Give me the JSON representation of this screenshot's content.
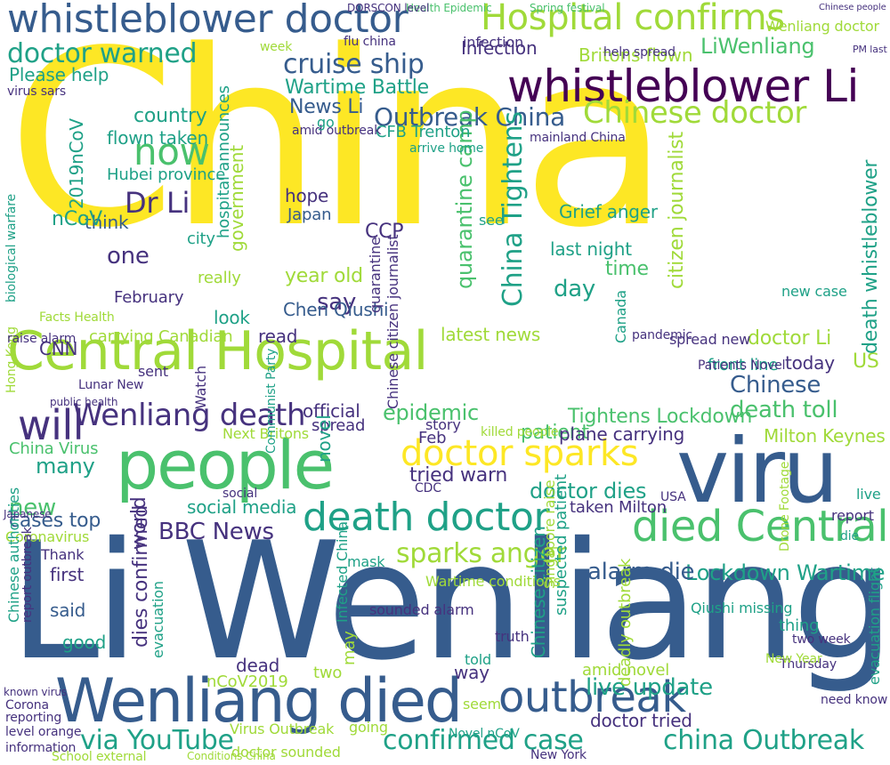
{
  "palette": {
    "yellow": "#fde725",
    "lime": "#a0da39",
    "green": "#4ac16d",
    "teal": "#1fa187",
    "cyan": "#277f8e",
    "blue": "#365c8d",
    "indigo": "#46327e",
    "purple": "#440154"
  },
  "words": [
    {
      "text": "China",
      "color": "yellow"
    },
    {
      "text": "Li Wenliang",
      "color": "blue"
    },
    {
      "text": "Central Hospital",
      "color": "lime"
    },
    {
      "text": "people",
      "color": "green"
    },
    {
      "text": "viru",
      "color": "blue"
    },
    {
      "text": "whistleblower doctor",
      "color": "blue"
    },
    {
      "text": "Hospital confirms",
      "color": "lime"
    },
    {
      "text": "whistleblower Li",
      "color": "purple"
    },
    {
      "text": "Wenliang died",
      "color": "blue"
    },
    {
      "text": "died Central",
      "color": "green"
    },
    {
      "text": "death doctor",
      "color": "teal"
    },
    {
      "text": "doctor sparks",
      "color": "yellow"
    },
    {
      "text": "Wenliang death",
      "color": "indigo"
    },
    {
      "text": "now",
      "color": "green"
    },
    {
      "text": "will",
      "color": "indigo"
    },
    {
      "text": "outbreak",
      "color": "blue"
    },
    {
      "text": "Chinese doctor",
      "color": "lime"
    },
    {
      "text": "cruise ship",
      "color": "blue"
    },
    {
      "text": "doctor warned",
      "color": "teal"
    },
    {
      "text": "Outbreak China",
      "color": "blue"
    },
    {
      "text": "Dr Li",
      "color": "indigo"
    },
    {
      "text": "BBC News",
      "color": "indigo"
    },
    {
      "text": "sparks anger",
      "color": "lime"
    },
    {
      "text": "confirmed case",
      "color": "teal"
    },
    {
      "text": "china Outbreak",
      "color": "teal"
    },
    {
      "text": "via YouTube",
      "color": "teal"
    },
    {
      "text": "live update",
      "color": "teal"
    },
    {
      "text": "Lockdown Wartime",
      "color": "teal"
    },
    {
      "text": "alarm die",
      "color": "blue"
    },
    {
      "text": "doctor dies",
      "color": "teal"
    },
    {
      "text": "Chinese",
      "color": "blue"
    },
    {
      "text": "death toll",
      "color": "green"
    },
    {
      "text": "epidemic",
      "color": "green"
    },
    {
      "text": "doctor Li",
      "color": "lime"
    },
    {
      "text": "Wartime Battle",
      "color": "teal"
    },
    {
      "text": "News Li",
      "color": "blue"
    },
    {
      "text": "country",
      "color": "teal"
    },
    {
      "text": "flown taken",
      "color": "teal"
    },
    {
      "text": "one",
      "color": "indigo"
    },
    {
      "text": "say",
      "color": "indigo"
    },
    {
      "text": "year old",
      "color": "lime"
    },
    {
      "text": "Chen Qiushi",
      "color": "blue"
    },
    {
      "text": "CCP",
      "color": "indigo"
    },
    {
      "text": "Grief anger",
      "color": "teal"
    },
    {
      "text": "day",
      "color": "teal"
    },
    {
      "text": "time",
      "color": "green"
    },
    {
      "text": "last night",
      "color": "teal"
    },
    {
      "text": "tried warn",
      "color": "indigo"
    },
    {
      "text": "Tightens Lockdown",
      "color": "green"
    },
    {
      "text": "patient",
      "color": "green"
    },
    {
      "text": "Milton Keynes",
      "color": "lime"
    },
    {
      "text": "plane carrying",
      "color": "indigo"
    },
    {
      "text": "cases top",
      "color": "blue"
    },
    {
      "text": "many",
      "color": "teal"
    },
    {
      "text": "new",
      "color": "green"
    },
    {
      "text": "China Virus",
      "color": "green"
    },
    {
      "text": "social media",
      "color": "teal"
    },
    {
      "text": "Infection",
      "color": "indigo"
    },
    {
      "text": "Please help",
      "color": "teal"
    },
    {
      "text": "Hubei province",
      "color": "teal"
    },
    {
      "text": "government",
      "color": "lime"
    },
    {
      "text": "Japan",
      "color": "blue"
    },
    {
      "text": "hope",
      "color": "indigo"
    },
    {
      "text": "think",
      "color": "blue"
    },
    {
      "text": "February",
      "color": "indigo"
    },
    {
      "text": "carrying Canadian",
      "color": "lime"
    },
    {
      "text": "latest news",
      "color": "lime"
    },
    {
      "text": "official",
      "color": "indigo"
    },
    {
      "text": "read",
      "color": "indigo"
    },
    {
      "text": "CNN",
      "color": "indigo"
    },
    {
      "text": "said",
      "color": "blue"
    },
    {
      "text": "first",
      "color": "indigo"
    },
    {
      "text": "good",
      "color": "teal"
    },
    {
      "text": "dead",
      "color": "indigo"
    },
    {
      "text": "today",
      "color": "indigo"
    },
    {
      "text": "US",
      "color": "lime"
    },
    {
      "text": "look",
      "color": "teal"
    },
    {
      "text": "really",
      "color": "lime"
    },
    {
      "text": "city",
      "color": "teal"
    },
    {
      "text": "new case",
      "color": "teal"
    },
    {
      "text": "Feb",
      "color": "indigo"
    },
    {
      "text": "story",
      "color": "indigo"
    },
    {
      "text": "spread",
      "color": "indigo"
    },
    {
      "text": "Chinese citizen",
      "color": "teal"
    },
    {
      "text": "China Tightens",
      "color": "teal"
    },
    {
      "text": "quarantine camp",
      "color": "green"
    },
    {
      "text": "citizen journalist",
      "color": "lime"
    },
    {
      "text": "death whistleblower",
      "color": "teal"
    },
    {
      "text": "2019nCoV",
      "color": "teal"
    },
    {
      "text": "nCoV",
      "color": "teal"
    },
    {
      "text": "hospital announces",
      "color": "teal"
    },
    {
      "text": "nCoV2019",
      "color": "lime"
    },
    {
      "text": "amid novel",
      "color": "lime"
    },
    {
      "text": "doctor tried",
      "color": "indigo"
    },
    {
      "text": "Coronavirus",
      "color": "lime"
    },
    {
      "text": "dies confirmed",
      "color": "indigo"
    },
    {
      "text": "world",
      "color": "indigo"
    },
    {
      "text": "novel",
      "color": "teal"
    },
    {
      "text": "front line",
      "color": "teal"
    },
    {
      "text": "Patients Novel",
      "color": "indigo"
    },
    {
      "text": "spread new",
      "color": "indigo"
    },
    {
      "text": "Watch",
      "color": "indigo"
    },
    {
      "text": "see",
      "color": "teal"
    },
    {
      "text": "CFB Trenton",
      "color": "teal"
    },
    {
      "text": "amid outbreak",
      "color": "indigo"
    },
    {
      "text": "arrive home",
      "color": "teal"
    },
    {
      "text": "quarantine",
      "color": "indigo"
    },
    {
      "text": "infection",
      "color": "indigo"
    },
    {
      "text": "LiWenliang",
      "color": "green"
    },
    {
      "text": "Britons flown",
      "color": "lime"
    },
    {
      "text": "Wenliang doctor",
      "color": "lime"
    },
    {
      "text": "Chinese people",
      "color": "indigo"
    },
    {
      "text": "Spring festival",
      "color": "green"
    },
    {
      "text": "Health Epidemic",
      "color": "green"
    },
    {
      "text": "DORSCON level",
      "color": "indigo"
    },
    {
      "text": "flu china",
      "color": "indigo"
    },
    {
      "text": "week",
      "color": "lime"
    },
    {
      "text": "help spread",
      "color": "indigo"
    },
    {
      "text": "PM last",
      "color": "indigo"
    },
    {
      "text": "go",
      "color": "teal"
    },
    {
      "text": "Canada",
      "color": "teal"
    },
    {
      "text": "Lunar New",
      "color": "indigo"
    },
    {
      "text": "sent",
      "color": "indigo"
    },
    {
      "text": "Thank",
      "color": "indigo"
    },
    {
      "text": "Hong Kong",
      "color": "lime"
    },
    {
      "text": "public health",
      "color": "indigo"
    },
    {
      "text": "Facts Health",
      "color": "lime"
    },
    {
      "text": "raise alarm",
      "color": "indigo"
    },
    {
      "text": "biological warfare",
      "color": "teal"
    },
    {
      "text": "virus sars",
      "color": "indigo"
    },
    {
      "text": "mainland China",
      "color": "indigo"
    },
    {
      "text": "pandemic",
      "color": "indigo"
    },
    {
      "text": "report",
      "color": "indigo"
    },
    {
      "text": "live",
      "color": "teal"
    },
    {
      "text": "die",
      "color": "teal"
    },
    {
      "text": "Thursday",
      "color": "indigo"
    },
    {
      "text": "two week",
      "color": "indigo"
    },
    {
      "text": "need know",
      "color": "indigo"
    },
    {
      "text": "New Year",
      "color": "lime"
    },
    {
      "text": "known virus",
      "color": "indigo"
    },
    {
      "text": "reporting",
      "color": "indigo"
    },
    {
      "text": "Corona",
      "color": "indigo"
    },
    {
      "text": "level orange",
      "color": "indigo"
    },
    {
      "text": "information",
      "color": "indigo"
    },
    {
      "text": "School external",
      "color": "lime"
    },
    {
      "text": "Conditions China",
      "color": "lime"
    },
    {
      "text": "Virus Outbreak",
      "color": "lime"
    },
    {
      "text": "doctor sounded",
      "color": "lime"
    },
    {
      "text": "going",
      "color": "lime"
    },
    {
      "text": "Novel nCoV",
      "color": "teal"
    },
    {
      "text": "New York",
      "color": "indigo"
    },
    {
      "text": "told",
      "color": "teal"
    },
    {
      "text": "truth",
      "color": "indigo"
    },
    {
      "text": "way",
      "color": "indigo"
    },
    {
      "text": "may",
      "color": "lime"
    },
    {
      "text": "two",
      "color": "lime"
    },
    {
      "text": "seem",
      "color": "lime"
    },
    {
      "text": "suspected patient",
      "color": "teal"
    },
    {
      "text": "thing",
      "color": "teal"
    },
    {
      "text": "Singapore raise",
      "color": "lime"
    },
    {
      "text": "sounded alarm",
      "color": "indigo"
    },
    {
      "text": "Qiushi missing",
      "color": "teal"
    },
    {
      "text": "deadly outbreak",
      "color": "lime"
    },
    {
      "text": "evacuation flight",
      "color": "teal"
    },
    {
      "text": "Chinese authorities",
      "color": "teal"
    },
    {
      "text": "report outbreak",
      "color": "indigo"
    },
    {
      "text": "evacuation",
      "color": "teal"
    },
    {
      "text": "mask",
      "color": "teal"
    },
    {
      "text": "Infected China",
      "color": "teal"
    },
    {
      "text": "Chinese citizen journalist",
      "color": "indigo"
    },
    {
      "text": "taken Milton",
      "color": "indigo"
    },
    {
      "text": "Drone Footage",
      "color": "lime"
    },
    {
      "text": "Next Britons",
      "color": "lime"
    },
    {
      "text": "social",
      "color": "indigo"
    },
    {
      "text": "Communist Party",
      "color": "teal"
    },
    {
      "text": "Wartime conditions",
      "color": "lime"
    },
    {
      "text": "killed people",
      "color": "lime"
    },
    {
      "text": "CDC",
      "color": "indigo"
    },
    {
      "text": "USA",
      "color": "indigo"
    },
    {
      "text": "Japanese",
      "color": "indigo"
    }
  ]
}
